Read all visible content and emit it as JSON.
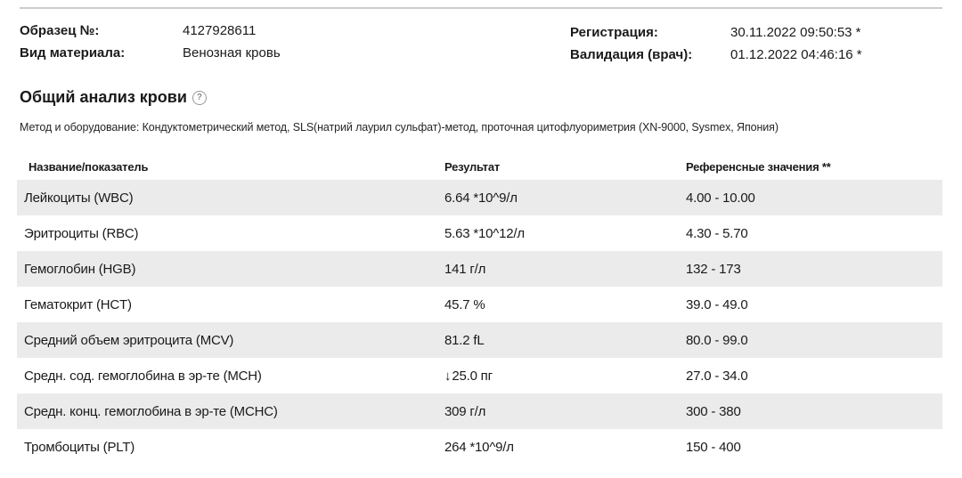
{
  "meta": {
    "sample_label": "Образец №:",
    "sample_value": "4127928611",
    "material_label": "Вид материала:",
    "material_value": "Венозная кровь",
    "registration_label": "Регистрация:",
    "registration_value": "30.11.2022 09:50:53 *",
    "validation_label": "Валидация (врач):",
    "validation_value": "01.12.2022 04:46:16 *"
  },
  "section": {
    "title": "Общий анализ крови",
    "help_icon": "question-mark-circle-icon",
    "method": "Метод и оборудование: Кондуктометрический метод, SLS(натрий лаурил сульфат)-метод, проточная цитофлуориметрия (XN-9000, Sysmex, Япония)"
  },
  "table": {
    "columns": {
      "name": "Название/показатель",
      "result": "Результат",
      "reference": "Референсные значения **"
    },
    "low_flag_glyph": "↓",
    "rows": [
      {
        "name": "Лейкоциты (WBC)",
        "result": "6.64 *10^9/л",
        "reference": "4.00 - 10.00",
        "flag": ""
      },
      {
        "name": "Эритроциты (RBC)",
        "result": "5.63 *10^12/л",
        "reference": "4.30 - 5.70",
        "flag": ""
      },
      {
        "name": "Гемоглобин (HGB)",
        "result": "141 г/л",
        "reference": "132 - 173",
        "flag": ""
      },
      {
        "name": "Гематокрит (HCT)",
        "result": "45.7 %",
        "reference": "39.0 - 49.0",
        "flag": ""
      },
      {
        "name": "Средний объем эритроцита (MCV)",
        "result": "81.2 fL",
        "reference": "80.0 - 99.0",
        "flag": ""
      },
      {
        "name": "Средн. сод. гемоглобина в эр-те (MCH)",
        "result": "25.0 пг",
        "reference": "27.0 - 34.0",
        "flag": "low"
      },
      {
        "name": "Средн. конц. гемоглобина в эр-те (MCHC)",
        "result": "309 г/л",
        "reference": "300 - 380",
        "flag": ""
      },
      {
        "name": "Тромбоциты (PLT)",
        "result": "264 *10^9/л",
        "reference": "150 - 400",
        "flag": ""
      }
    ]
  },
  "colors": {
    "row_alt_bg": "#ebebeb",
    "top_rule": "#cccccc",
    "icon_gray": "#8c8c8c",
    "text": "#1a1a1a"
  }
}
